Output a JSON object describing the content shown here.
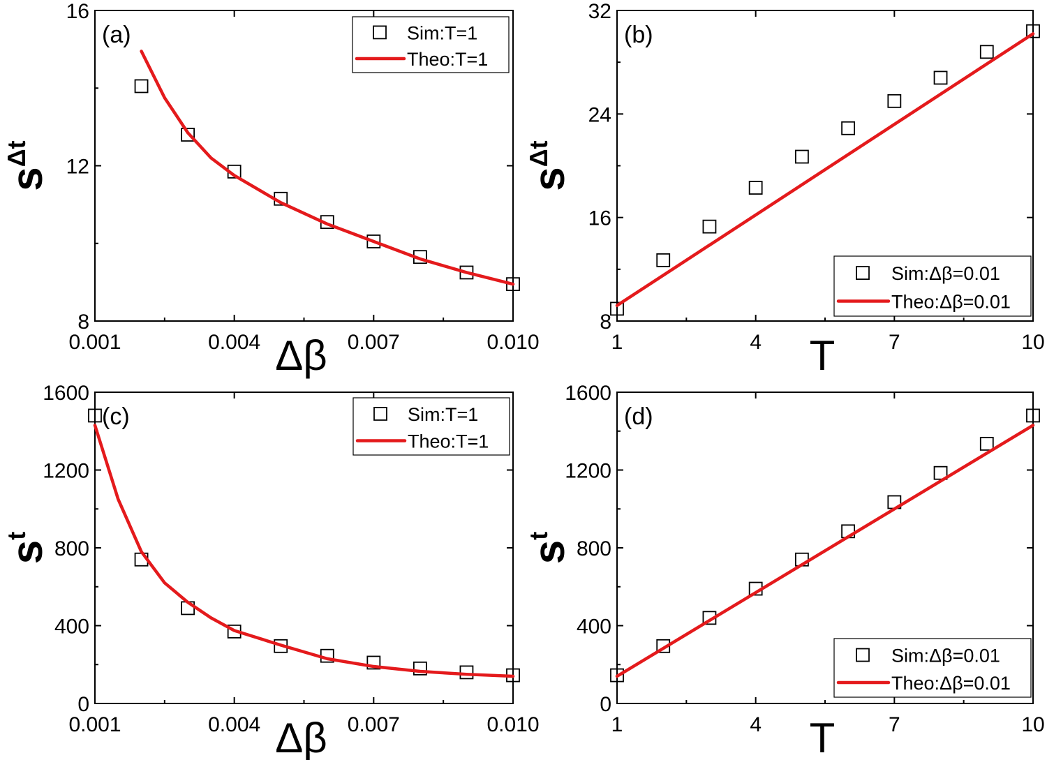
{
  "colors": {
    "theory": "#e41a1c",
    "axis": "#000000",
    "marker": "#000000"
  },
  "chart_data": [
    {
      "type": "scatter",
      "panel_label": "(a)",
      "xlabel": "Δβ",
      "ylabel_main": "s",
      "ylabel_sub": "Δt",
      "xlim": [
        0.001,
        0.01
      ],
      "ylim": [
        8,
        16
      ],
      "xticks": [
        0.001,
        0.004,
        0.007,
        0.01
      ],
      "xtick_labels": [
        "0.001",
        "0.004",
        "0.007",
        "0.010"
      ],
      "yticks": [
        8,
        12,
        16
      ],
      "ytick_labels": [
        "8",
        "12",
        "16"
      ],
      "legend_position": "top-right",
      "series": [
        {
          "name": "Sim:T=1",
          "kind": "markers",
          "x": [
            0.002,
            0.003,
            0.004,
            0.005,
            0.006,
            0.007,
            0.008,
            0.009,
            0.01
          ],
          "y": [
            14.05,
            12.8,
            11.85,
            11.15,
            10.55,
            10.05,
            9.65,
            9.25,
            8.95
          ]
        },
        {
          "name": "Theo:T=1",
          "kind": "line",
          "x": [
            0.002,
            0.0025,
            0.003,
            0.0035,
            0.004,
            0.005,
            0.006,
            0.007,
            0.008,
            0.009,
            0.01
          ],
          "y": [
            14.95,
            13.75,
            12.85,
            12.2,
            11.75,
            11.05,
            10.5,
            10.05,
            9.6,
            9.25,
            8.95
          ]
        }
      ]
    },
    {
      "type": "scatter",
      "panel_label": "(b)",
      "xlabel": "T",
      "ylabel_main": "s",
      "ylabel_sub": "Δt",
      "xlim": [
        1,
        10
      ],
      "ylim": [
        8,
        32
      ],
      "xticks": [
        1,
        4,
        7,
        10
      ],
      "xtick_labels": [
        "1",
        "4",
        "7",
        "10"
      ],
      "yticks": [
        8,
        16,
        24,
        32
      ],
      "ytick_labels": [
        "8",
        "16",
        "24",
        "32"
      ],
      "legend_position": "bottom-right",
      "series": [
        {
          "name": "Sim:Δβ=0.01",
          "kind": "markers",
          "x": [
            1,
            2,
            3,
            4,
            5,
            6,
            7,
            8,
            9,
            10
          ],
          "y": [
            8.95,
            12.7,
            15.3,
            18.3,
            20.7,
            22.9,
            25.0,
            26.8,
            28.8,
            30.4
          ]
        },
        {
          "name": "Theo:Δβ=0.01",
          "kind": "line",
          "x": [
            1,
            10
          ],
          "y": [
            9.2,
            30.2
          ]
        }
      ]
    },
    {
      "type": "scatter",
      "panel_label": "(c)",
      "xlabel": "Δβ",
      "ylabel_main": "s",
      "ylabel_sub": "t",
      "xlim": [
        0.001,
        0.01
      ],
      "ylim": [
        0,
        1600
      ],
      "xticks": [
        0.001,
        0.004,
        0.007,
        0.01
      ],
      "xtick_labels": [
        "0.001",
        "0.004",
        "0.007",
        "0.010"
      ],
      "yticks": [
        0,
        400,
        800,
        1200,
        1600
      ],
      "ytick_labels": [
        "0",
        "400",
        "800",
        "1200",
        "1600"
      ],
      "legend_position": "top-right",
      "series": [
        {
          "name": "Sim:T=1",
          "kind": "markers",
          "x": [
            0.001,
            0.002,
            0.003,
            0.004,
            0.005,
            0.006,
            0.007,
            0.008,
            0.009,
            0.01
          ],
          "y": [
            1480,
            740,
            490,
            370,
            295,
            245,
            210,
            180,
            160,
            145
          ]
        },
        {
          "name": "Theo:T=1",
          "kind": "line",
          "x": [
            0.001,
            0.0015,
            0.002,
            0.0025,
            0.003,
            0.0035,
            0.004,
            0.005,
            0.006,
            0.007,
            0.008,
            0.009,
            0.01
          ],
          "y": [
            1430,
            1050,
            780,
            620,
            520,
            440,
            375,
            300,
            230,
            190,
            165,
            150,
            140
          ]
        }
      ]
    },
    {
      "type": "scatter",
      "panel_label": "(d)",
      "xlabel": "T",
      "ylabel_main": "s",
      "ylabel_sub": "t",
      "xlim": [
        1,
        10
      ],
      "ylim": [
        0,
        1600
      ],
      "xticks": [
        1,
        4,
        7,
        10
      ],
      "xtick_labels": [
        "1",
        "4",
        "7",
        "10"
      ],
      "yticks": [
        0,
        400,
        800,
        1200,
        1600
      ],
      "ytick_labels": [
        "0",
        "400",
        "800",
        "1200",
        "1600"
      ],
      "legend_position": "bottom-right",
      "series": [
        {
          "name": "Sim:Δβ=0.01",
          "kind": "markers",
          "x": [
            1,
            2,
            3,
            4,
            5,
            6,
            7,
            8,
            9,
            10
          ],
          "y": [
            145,
            295,
            440,
            590,
            740,
            885,
            1035,
            1185,
            1335,
            1480
          ]
        },
        {
          "name": "Theo:Δβ=0.01",
          "kind": "line",
          "x": [
            1,
            10
          ],
          "y": [
            140,
            1430
          ]
        }
      ]
    }
  ]
}
